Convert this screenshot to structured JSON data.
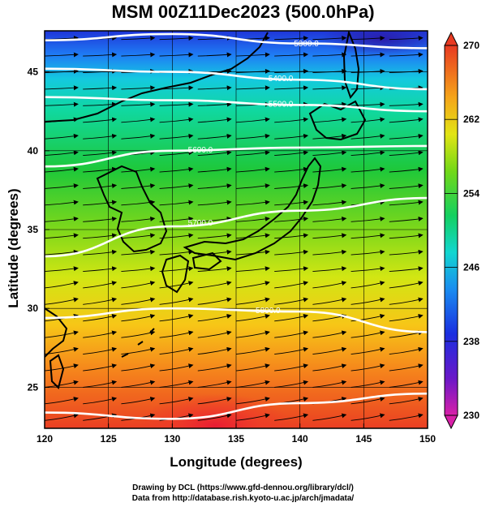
{
  "title": "MSM 00Z11Dec2023 (500.0hPa)",
  "axes": {
    "xlabel": "Longitude (degrees)",
    "ylabel": "Latitude  (degrees)",
    "xticks": [
      "120",
      "125",
      "130",
      "135",
      "140",
      "145",
      "150"
    ],
    "yticks": [
      "25",
      "30",
      "35",
      "40",
      "45"
    ],
    "xlim": [
      120,
      150
    ],
    "ylim": [
      22.4,
      47.6
    ]
  },
  "colorbar": {
    "labels": [
      "270",
      "262",
      "254",
      "246",
      "238",
      "230"
    ],
    "range": [
      230,
      270
    ]
  },
  "contours": [
    {
      "label": "5300.0",
      "lat_at_lon": [
        [
          120,
          47.0
        ],
        [
          130,
          47.4
        ],
        [
          140,
          46.8
        ],
        [
          150,
          46.5
        ]
      ]
    },
    {
      "label": "5400.0",
      "lat_at_lon": [
        [
          120,
          45.2
        ],
        [
          130,
          45.0
        ],
        [
          140,
          44.5
        ],
        [
          150,
          43.9
        ]
      ]
    },
    {
      "label": "5500.0",
      "lat_at_lon": [
        [
          120,
          43.4
        ],
        [
          130,
          43.2
        ],
        [
          140,
          42.9
        ],
        [
          150,
          42.5
        ]
      ]
    },
    {
      "label": "5600.0",
      "lat_at_lon": [
        [
          120,
          39.0
        ],
        [
          130,
          40.0
        ],
        [
          140,
          40.2
        ],
        [
          150,
          40.3
        ]
      ]
    },
    {
      "label": "5700.0",
      "lat_at_lon": [
        [
          120,
          33.3
        ],
        [
          130,
          35.2
        ],
        [
          140,
          36.2
        ],
        [
          150,
          37.0
        ]
      ]
    },
    {
      "label": "5800.0",
      "lat_at_lon": [
        [
          120,
          29.4
        ],
        [
          130,
          30.0
        ],
        [
          140,
          29.8
        ],
        [
          150,
          28.5
        ]
      ]
    },
    {
      "label": "",
      "lat_at_lon": [
        [
          120,
          23.4
        ],
        [
          130,
          23.0
        ],
        [
          140,
          24.0
        ],
        [
          150,
          24.6
        ]
      ]
    }
  ],
  "contour_labels_shown": [
    "5300.0",
    "5400.0",
    "5500.0",
    "5600.0",
    "5700.0",
    "5800.0"
  ],
  "credits": {
    "line1": "Drawing by DCL (https://www.gfd-dennou.org/library/dcl/)",
    "line2": "Data from http://database.rish.kyoto-u.ac.jp/arch/jmadata/"
  }
}
